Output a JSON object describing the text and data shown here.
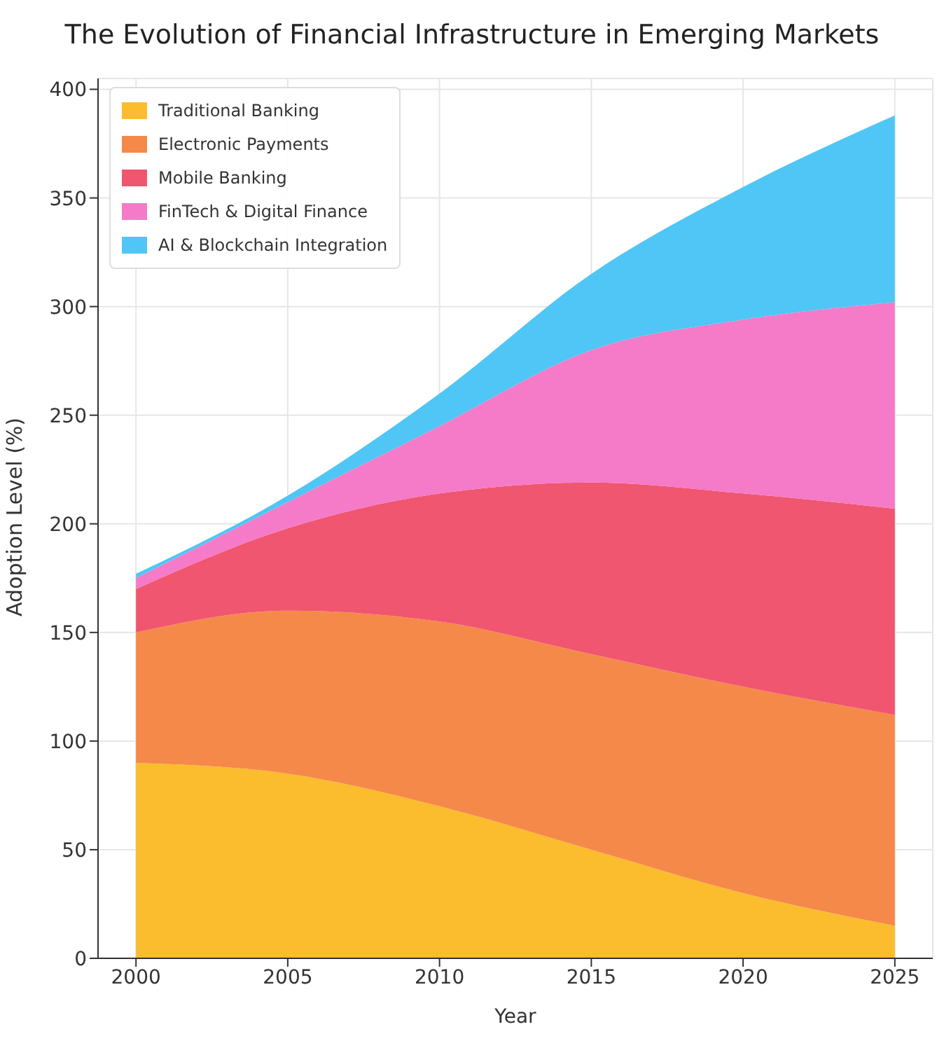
{
  "chart_data": {
    "type": "area",
    "stacked": true,
    "title": "The Evolution of Financial Infrastructure in Emerging Markets",
    "xlabel": "Year",
    "ylabel": "Adoption Level (%)",
    "x": [
      2000,
      2005,
      2010,
      2015,
      2020,
      2025
    ],
    "series": [
      {
        "name": "Traditional Banking",
        "color": "#fbbc2e",
        "values": [
          90,
          85,
          70,
          50,
          30,
          15
        ]
      },
      {
        "name": "Electronic Payments",
        "color": "#f5894a",
        "values": [
          60,
          75,
          85,
          90,
          95,
          97
        ]
      },
      {
        "name": "Mobile Banking",
        "color": "#f0566f",
        "values": [
          20,
          38,
          59,
          79,
          89,
          95
        ]
      },
      {
        "name": "FinTech & Digital Finance",
        "color": "#f57ac8",
        "values": [
          5,
          12,
          31,
          61,
          80,
          95
        ]
      },
      {
        "name": "AI & Blockchain Integration",
        "color": "#4fc6f5",
        "values": [
          2,
          3,
          15,
          35,
          61,
          86
        ]
      }
    ],
    "xlim": [
      1998.75,
      2026.25
    ],
    "xticks": [
      2000,
      2005,
      2010,
      2015,
      2020,
      2025
    ],
    "ylim": [
      0,
      405
    ],
    "yticks": [
      0,
      50,
      100,
      150,
      200,
      250,
      300,
      350,
      400
    ],
    "grid": true,
    "legend": "top left"
  }
}
